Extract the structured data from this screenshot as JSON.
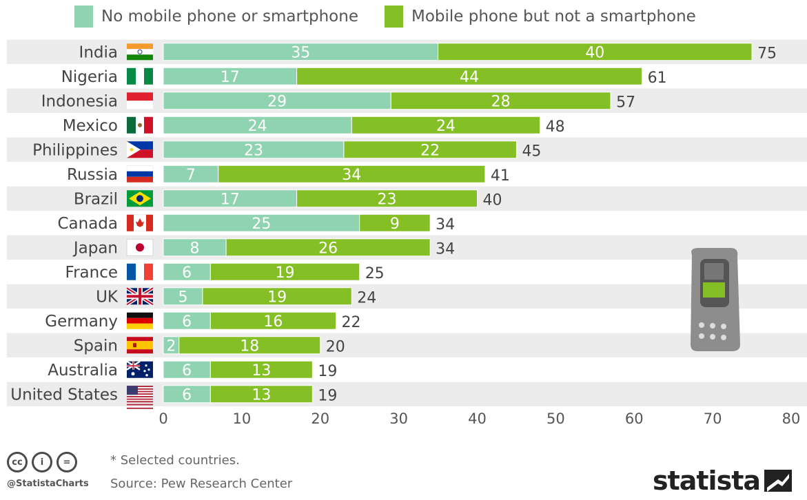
{
  "legend": [
    {
      "label": "No mobile phone or smartphone",
      "color": "#8fd3b0"
    },
    {
      "label": "Mobile phone but not a smartphone",
      "color": "#85bf26"
    }
  ],
  "chart_data": {
    "type": "bar",
    "orientation": "horizontal",
    "stacked": true,
    "categories": [
      "India",
      "Nigeria",
      "Indonesia",
      "Mexico",
      "Philippines",
      "Russia",
      "Brazil",
      "Canada",
      "Japan",
      "France",
      "UK",
      "Germany",
      "Spain",
      "Australia",
      "United States"
    ],
    "series": [
      {
        "name": "No mobile phone or smartphone",
        "color": "#8fd3b0",
        "values": [
          35,
          17,
          29,
          24,
          23,
          7,
          17,
          25,
          8,
          6,
          5,
          6,
          2,
          6,
          6
        ]
      },
      {
        "name": "Mobile phone but not a smartphone",
        "color": "#85bf26",
        "values": [
          40,
          44,
          28,
          24,
          22,
          34,
          23,
          9,
          26,
          19,
          19,
          16,
          18,
          13,
          13
        ]
      }
    ],
    "totals": [
      75,
      61,
      57,
      48,
      45,
      41,
      40,
      34,
      34,
      25,
      24,
      22,
      20,
      19,
      19
    ],
    "xlim": [
      0,
      80
    ],
    "xticks": [
      0,
      10,
      20,
      30,
      40,
      50,
      60,
      70,
      80
    ],
    "row_stripe_color": "#ececec",
    "legend_position": "top"
  },
  "footer": {
    "note": "* Selected countries.",
    "source": "Source: Pew Research Center",
    "handle": "@StatistaCharts",
    "brand": "statista",
    "cc_icons": [
      "cc",
      "i",
      "="
    ]
  }
}
